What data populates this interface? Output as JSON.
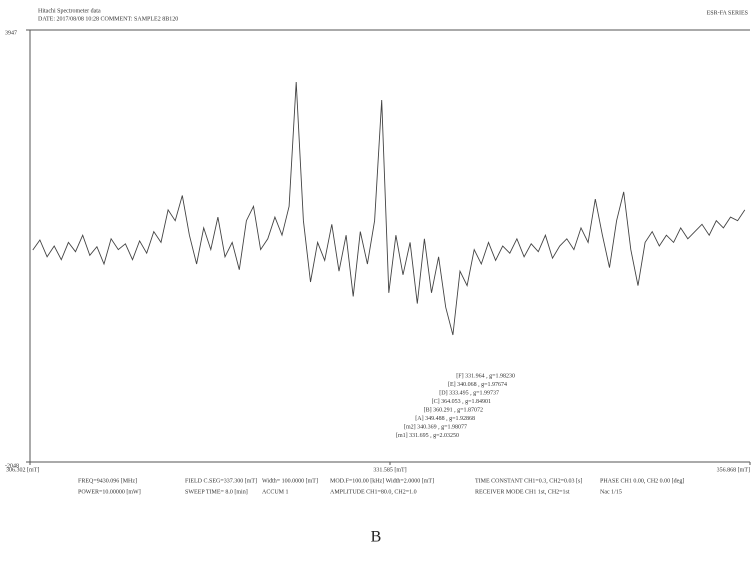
{
  "chart_data": {
    "type": "line",
    "header": [
      "Hitachi Spectrometer data",
      "DATE: 2017/08/08 10:28    COMMENT: SAMPLE2 8B120"
    ],
    "header_right": "ESR-FA SERIES",
    "caption": "B",
    "color": "#444444",
    "xlim": [
      306.302,
      356.868
    ],
    "xticks": [
      {
        "value": 306.302,
        "label": "306.302 [mT]"
      },
      {
        "value": 331.585,
        "label": "331.585 [mT]"
      },
      {
        "value": 356.868,
        "label": "356.868 [mT]"
      }
    ],
    "ylim": [
      -2048,
      3947
    ],
    "yticks": [
      -2048,
      3947
    ],
    "x": [
      306.5,
      307,
      307.5,
      308,
      308.5,
      309,
      309.5,
      310,
      310.5,
      311,
      311.5,
      312,
      312.5,
      313,
      313.5,
      314,
      314.5,
      315,
      315.5,
      316,
      316.5,
      317,
      317.5,
      318,
      318.5,
      319,
      319.5,
      320,
      320.5,
      321,
      321.5,
      322,
      322.5,
      323,
      323.5,
      324,
      324.5,
      325,
      325.5,
      326,
      326.5,
      327,
      327.5,
      328,
      328.5,
      329,
      329.5,
      330,
      330.5,
      331,
      331.5,
      332,
      332.5,
      333,
      333.5,
      334,
      334.5,
      335,
      335.5,
      336,
      336.5,
      337,
      337.5,
      338,
      338.5,
      339,
      339.5,
      340,
      340.5,
      341,
      341.5,
      342,
      342.5,
      343,
      343.5,
      344,
      344.5,
      345,
      345.5,
      346,
      346.5,
      347,
      347.5,
      348,
      348.5,
      349,
      349.5,
      350,
      350.5,
      351,
      351.5,
      352,
      352.5,
      353,
      353.5,
      354,
      354.5,
      355,
      355.5,
      356,
      356.5
    ],
    "values": [
      894,
      1033,
      800,
      950,
      760,
      1000,
      870,
      1100,
      820,
      940,
      700,
      1050,
      900,
      980,
      760,
      1020,
      850,
      1150,
      1000,
      1450,
      1300,
      1650,
      1100,
      700,
      1200,
      900,
      1350,
      800,
      1000,
      620,
      1300,
      1500,
      900,
      1050,
      1350,
      1100,
      1500,
      3225,
      1300,
      450,
      1000,
      750,
      1250,
      600,
      1100,
      250,
      1150,
      700,
      1300,
      2975,
      300,
      1100,
      550,
      1000,
      150,
      1050,
      300,
      800,
      100,
      -286,
      600,
      400,
      900,
      700,
      1000,
      750,
      950,
      850,
      1050,
      800,
      980,
      870,
      1100,
      780,
      950,
      1050,
      900,
      1200,
      1000,
      1600,
      1100,
      650,
      1300,
      1700,
      900,
      400,
      1000,
      1150,
      950,
      1100,
      1000,
      1200,
      1050,
      1150,
      1250,
      1100,
      1300,
      1200,
      1350,
      1300,
      1450
    ],
    "annotations": [
      "[F] 331.964 , g=1.98230",
      "[E] 340.068 , g=1.97674",
      "[D] 333.495 , g=1.99737",
      "[C] 364.053 , g=1.84901",
      "[B] 360.291 , g=1.87072",
      "[A] 349.488 , g=1.92868",
      "[m2] 340.369 , g=1.98077",
      "[m1] 331.695 , g=2.03250"
    ],
    "parameters": [
      "FREQ=9430.096 [MHz]",
      "FIELD C.SEG=337.300 [mT]",
      "Width= 100.0000 [mT]",
      "MOD.F=100.00 [kHz]  Width=2.0000 [mT]",
      "TIME CONSTANT CH1=0.3, CH2=0.03 [s]",
      "PHASE CH1 0.00, CH2 0.00 [deg]",
      "POWER=10.00000 [mW]",
      "SWEEP TIME= 8.0 [min]",
      "ACCUM 1",
      "AMPLITUDE CH1=80.0, CH2=1.0",
      "RECEIVER MODE CH1 1st, CH2=1st",
      "Nac 1/15"
    ]
  }
}
